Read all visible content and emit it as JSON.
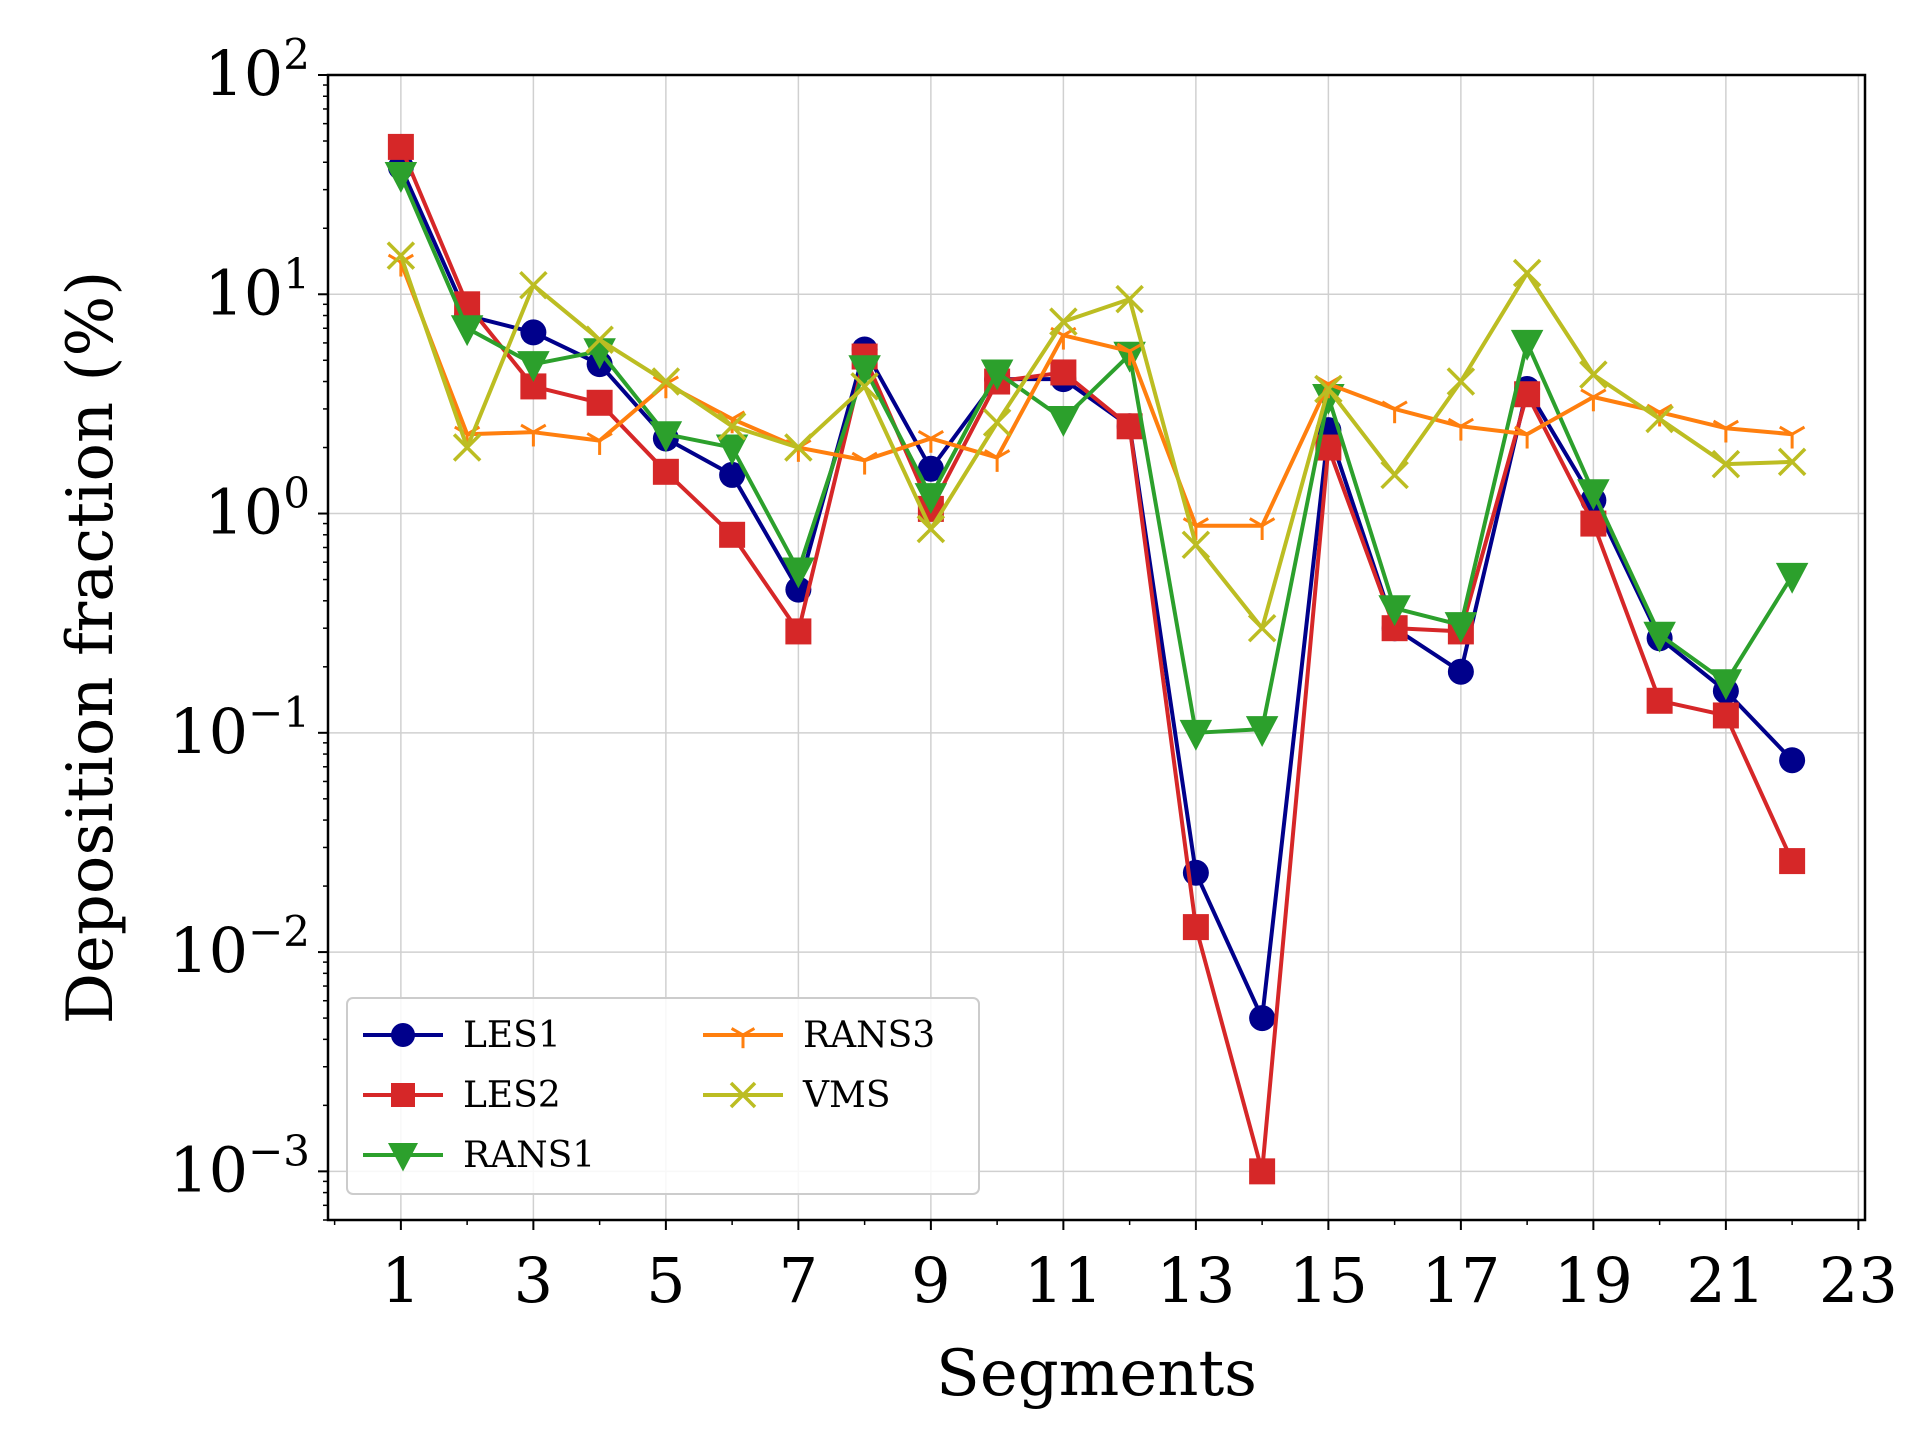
{
  "chart_data": {
    "type": "line",
    "xlabel": "Segments",
    "ylabel": "Deposition fraction (%)",
    "yscale": "log",
    "ylim": [
      0.0006,
      100
    ],
    "xlim": [
      -0.1,
      23.1
    ],
    "xticks": [
      "1",
      "3",
      "5",
      "7",
      "9",
      "11",
      "13",
      "15",
      "17",
      "19",
      "21",
      "23"
    ],
    "yticks": [
      {
        "base": "10",
        "exp": "2",
        "value": 100
      },
      {
        "base": "10",
        "exp": "1",
        "value": 10
      },
      {
        "base": "10",
        "exp": "0",
        "value": 1
      },
      {
        "base": "10",
        "exp": "−1",
        "value": 0.1
      },
      {
        "base": "10",
        "exp": "−2",
        "value": 0.01
      },
      {
        "base": "10",
        "exp": "−3",
        "value": 0.001
      }
    ],
    "grid": true,
    "legend_position": "lower-left",
    "x": [
      1,
      2,
      3,
      4,
      5,
      6,
      7,
      8,
      9,
      10,
      11,
      12,
      13,
      14,
      15,
      16,
      17,
      18,
      19,
      20,
      21,
      22
    ],
    "series": [
      {
        "name": "LES1",
        "color": "#00008b",
        "marker": "circle",
        "values": [
          38,
          8,
          6.7,
          4.8,
          2.2,
          1.5,
          0.45,
          5.6,
          1.6,
          4.1,
          4.1,
          2.5,
          0.023,
          0.005,
          2.4,
          0.3,
          0.19,
          3.7,
          1.15,
          0.27,
          0.155,
          0.075
        ]
      },
      {
        "name": "LES2",
        "color": "#d62728",
        "marker": "square",
        "values": [
          47,
          9,
          3.8,
          3.2,
          1.55,
          0.8,
          0.29,
          5.2,
          1.05,
          4.0,
          4.4,
          2.5,
          0.013,
          0.001,
          2.0,
          0.3,
          0.29,
          3.5,
          0.9,
          0.14,
          0.12,
          0.026
        ]
      },
      {
        "name": "RANS1",
        "color": "#2ca02c",
        "marker": "triangle-down",
        "values": [
          35,
          7,
          4.8,
          5.5,
          2.3,
          2.0,
          0.55,
          4.6,
          1.2,
          4.4,
          2.7,
          5.3,
          0.1,
          0.104,
          3.4,
          0.37,
          0.31,
          6.0,
          1.25,
          0.28,
          0.17,
          0.52
        ]
      },
      {
        "name": "RANS3",
        "color": "#ff7f0e",
        "marker": "tri-down",
        "values": [
          14,
          2.3,
          2.35,
          2.15,
          3.9,
          2.7,
          2.0,
          1.75,
          2.2,
          1.8,
          6.5,
          5.5,
          0.88,
          0.88,
          3.9,
          3.0,
          2.5,
          2.3,
          3.4,
          2.9,
          2.45,
          2.3
        ]
      },
      {
        "name": "VMS",
        "color": "#bcbd22",
        "marker": "x",
        "values": [
          15,
          2.0,
          11,
          6.2,
          4.0,
          2.5,
          2.0,
          3.8,
          0.85,
          2.6,
          7.5,
          9.5,
          0.72,
          0.3,
          3.7,
          1.5,
          4.0,
          12.5,
          4.3,
          2.7,
          1.68,
          1.72
        ]
      }
    ]
  }
}
